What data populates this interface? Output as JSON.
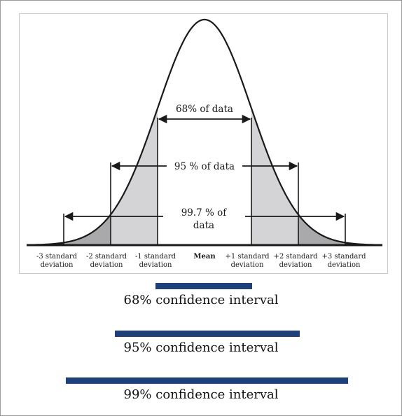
{
  "diagram": {
    "annotations": {
      "one_sd": "68% of data",
      "two_sd": "95 % of data",
      "three_sd_line1": "99.7 % of",
      "three_sd_line2": "data"
    },
    "axis_labels": [
      {
        "line1": "-3 standard",
        "line2": "deviation"
      },
      {
        "line1": "-2 standard",
        "line2": "deviation"
      },
      {
        "line1": "-1 standard",
        "line2": "deviation"
      },
      {
        "line1": "Mean",
        "line2": ""
      },
      {
        "line1": "+1 standard",
        "line2": "deviation"
      },
      {
        "line1": "+2 standard",
        "line2": "deviation"
      },
      {
        "line1": "+3 standard",
        "line2": "deviation"
      }
    ],
    "colors": {
      "curve": "#1a1a1a",
      "shade_one_sd": "#d4d4d6",
      "shade_two_sd": "#a9a9ab",
      "shade_tail": "#262626"
    }
  },
  "confidence_intervals": [
    {
      "label": "68% confidence interval",
      "color": "#1e3f78"
    },
    {
      "label": "95% confidence interval",
      "color": "#1e3f78"
    },
    {
      "label": "99% confidence interval",
      "color": "#1e3f78"
    }
  ]
}
